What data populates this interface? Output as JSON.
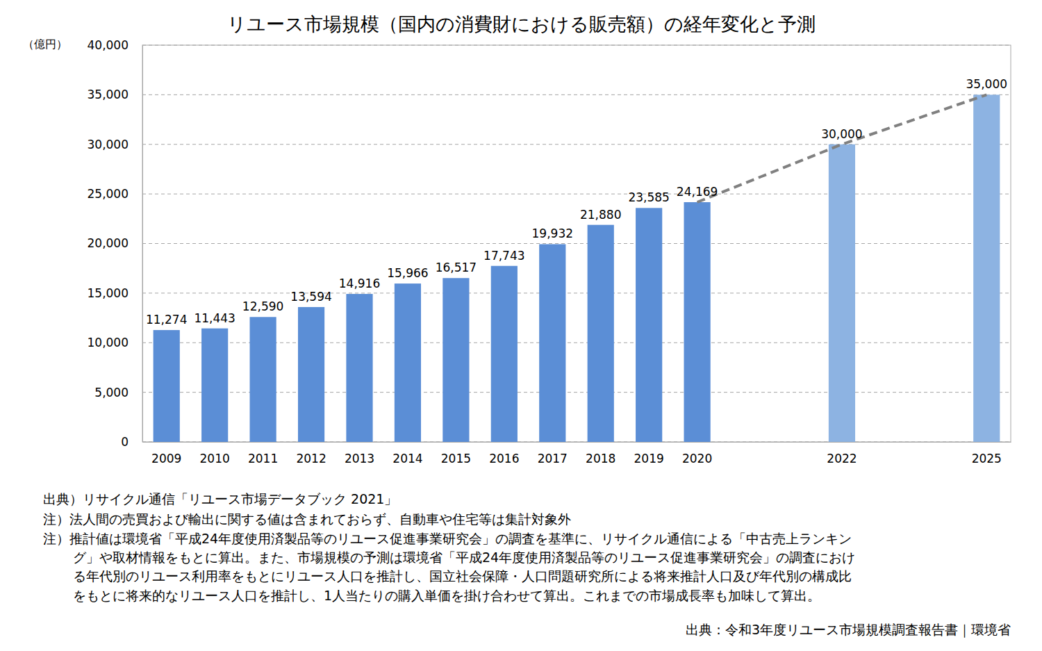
{
  "chart_data": {
    "type": "bar",
    "title": "リユース市場規模（国内の消費財における販売額）の経年変化と予測",
    "y_label": "（億円）",
    "categories": [
      "2009",
      "2010",
      "2011",
      "2012",
      "2013",
      "2014",
      "2015",
      "2016",
      "2017",
      "2018",
      "2019",
      "2020",
      null,
      null,
      "2022",
      null,
      null,
      "2025"
    ],
    "series": [
      {
        "type": "bar",
        "values": [
          11274,
          11443,
          12590,
          13594,
          14916,
          15966,
          16517,
          17743,
          19932,
          21880,
          23585,
          24169,
          null,
          null,
          30000,
          null,
          null,
          35000
        ],
        "value_labels": [
          "11,274",
          "11,443",
          "12,590",
          "13,594",
          "14,916",
          "15,966",
          "16,517",
          "17,743",
          "19,932",
          "21,880",
          "23,585",
          "24,169",
          null,
          null,
          "30,000",
          null,
          null,
          "35,000"
        ],
        "colors": [
          "#5b8ed6",
          "#5b8ed6",
          "#5b8ed6",
          "#5b8ed6",
          "#5b8ed6",
          "#5b8ed6",
          "#5b8ed6",
          "#5b8ed6",
          "#5b8ed6",
          "#5b8ed6",
          "#5b8ed6",
          "#5b8ed6",
          null,
          null,
          "#8db3e2",
          null,
          null,
          "#8db3e2"
        ]
      },
      {
        "type": "line",
        "x": [
          "2020",
          "2022",
          "2025"
        ],
        "values": [
          24169,
          30000,
          35000
        ],
        "color": "#808080",
        "line_style": "dashed"
      }
    ],
    "data_labels": true,
    "ylim": [
      0,
      40000
    ],
    "yticks": [
      0,
      {
        "value": 5000,
        "label": "5,000"
      },
      {
        "value": 10000,
        "label": "10,000"
      },
      {
        "value": 15000,
        "label": "15,000"
      },
      {
        "value": 20000,
        "label": "20,000"
      },
      {
        "value": 25000,
        "label": "25,000"
      },
      {
        "value": 30000,
        "label": "30,000"
      },
      {
        "value": 35000,
        "label": "35,000"
      },
      {
        "value": 40000,
        "label": "40,000"
      }
    ],
    "grid": true,
    "annotations": [
      "出典）リサイクル通信「リユース市場データブック 2021」",
      "注）法人間の売買および輸出に関する値は含まれておらず、自動車や住宅等は集計対象外",
      "注）推計値は環境省「平成24年度使用済製品等のリユース促進事業研究会」の調査を基準に、リサイクル通信による「中古売上ランキン",
      "グ」や取材情報をもとに算出。また、市場規模の予測は環境省「平成24年度使用済製品等のリユース促進事業研究会」の調査におけ",
      "る年代別のリユース利用率をもとにリユース人口を推計し、国立社会保障・人口問題研究所による将来推計人口及び年代別の構成比",
      "をもとに将来的なリユース人口を推計し、1人当たりの購入単価を掛け合わせて算出。これまでの市場成長率も加味して算出。",
      "出典：令和3年度リユース市場規模調査報告書｜環境省"
    ]
  }
}
